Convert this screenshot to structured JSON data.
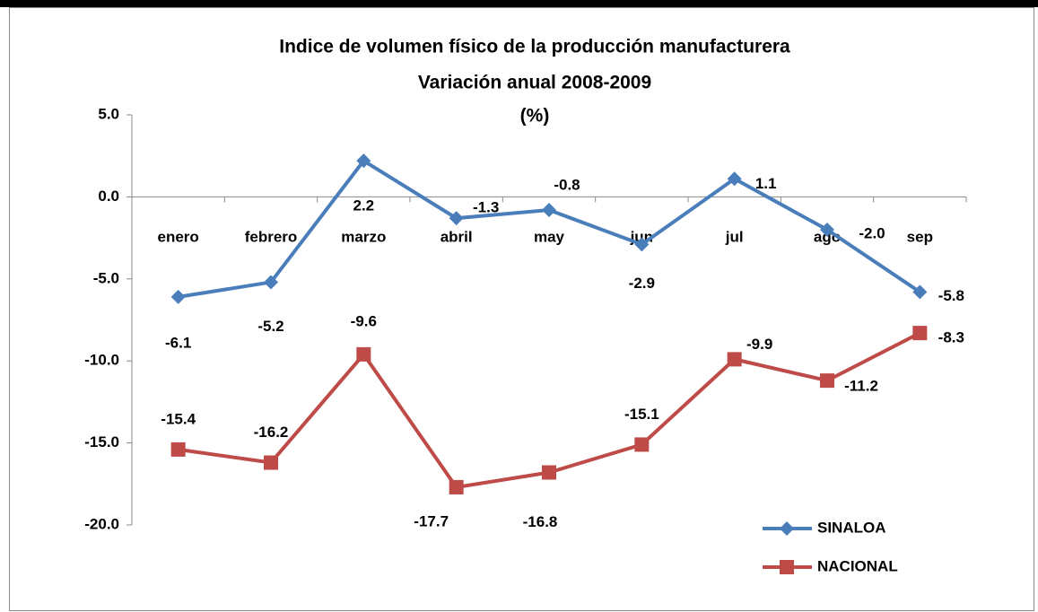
{
  "chart_data": {
    "type": "line",
    "title": "Indice de volumen físico de la producción manufacturera",
    "subtitle": "Variación anual  2008-2009",
    "unit_label": "(%)",
    "categories": [
      "enero",
      "febrero",
      "marzo",
      "abril",
      "may",
      "jun",
      "jul",
      "ago",
      "sep"
    ],
    "series": [
      {
        "name": "SINALOA",
        "color": "#4a7ebb",
        "marker": "diamond",
        "values": [
          -6.1,
          -5.2,
          2.2,
          -1.3,
          -0.8,
          -2.9,
          1.1,
          -2.0,
          -5.8
        ],
        "value_labels": [
          "-6.1",
          "-5.2",
          "2.2",
          "-1.3",
          "-0.8",
          "-2.9",
          "1.1",
          "-2.0",
          "-5.8"
        ]
      },
      {
        "name": "NACIONAL",
        "color": "#be4b48",
        "marker": "square",
        "values": [
          -15.4,
          -16.2,
          -9.6,
          -17.7,
          -16.8,
          -15.1,
          -9.9,
          -11.2,
          -8.3
        ],
        "value_labels": [
          "-15.4",
          "-16.2",
          "-9.6",
          "-17.7",
          "-16.8",
          "-15.1",
          "-9.9",
          "-11.2",
          "-8.3"
        ]
      }
    ],
    "ylim": [
      -20,
      5
    ],
    "yticks": [
      {
        "value": 5,
        "label": "5.0"
      },
      {
        "value": 0,
        "label": "0.0"
      },
      {
        "value": -5,
        "label": "-5.0"
      },
      {
        "value": -10,
        "label": "-10.0"
      },
      {
        "value": -15,
        "label": "-15.0"
      },
      {
        "value": -20,
        "label": "-20.0"
      }
    ],
    "grid": false,
    "legend": "lower right"
  }
}
